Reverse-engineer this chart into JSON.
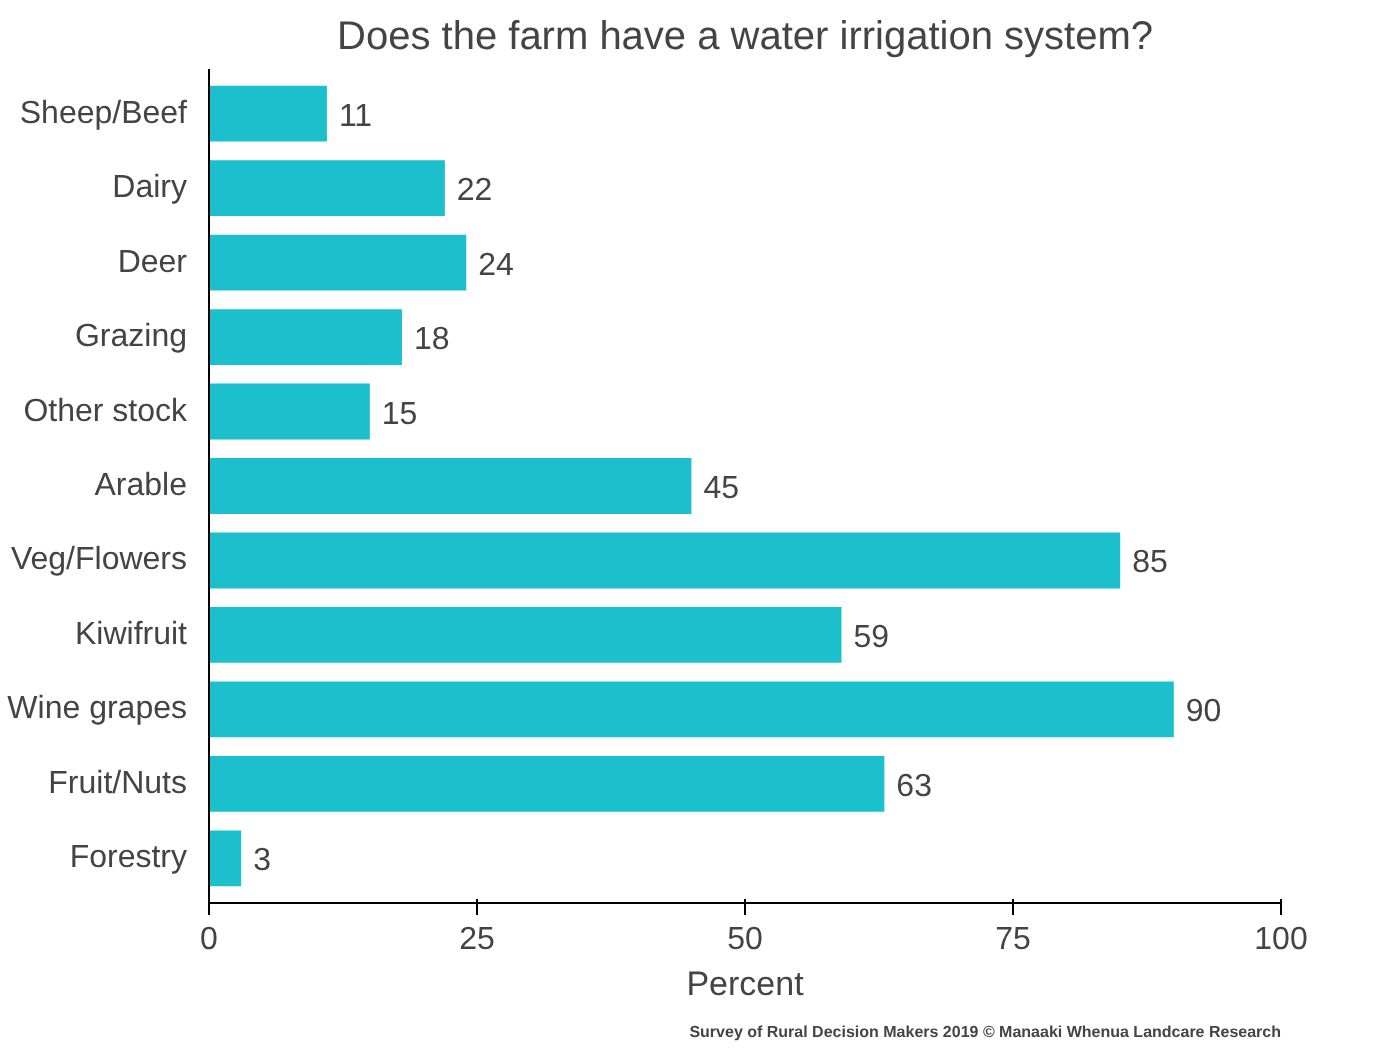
{
  "chart_data": {
    "type": "bar",
    "orientation": "horizontal",
    "title": "Does the farm have a water irrigation system?",
    "categories": [
      "Sheep/Beef",
      "Dairy",
      "Deer",
      "Grazing",
      "Other stock",
      "Arable",
      "Veg/Flowers",
      "Kiwifruit",
      "Wine grapes",
      "Fruit/Nuts",
      "Forestry"
    ],
    "values": [
      11,
      22,
      24,
      18,
      15,
      45,
      85,
      59,
      90,
      63,
      3
    ],
    "color": "#1cbfcc",
    "xlim": [
      0,
      100
    ],
    "xticks": [
      0,
      25,
      50,
      75,
      100
    ],
    "xlabel": "Percent",
    "data_labels": true,
    "grid": false,
    "annotations": [
      "Survey of Rural Decision Makers 2019 © Manaaki Whenua Landcare Research"
    ]
  }
}
